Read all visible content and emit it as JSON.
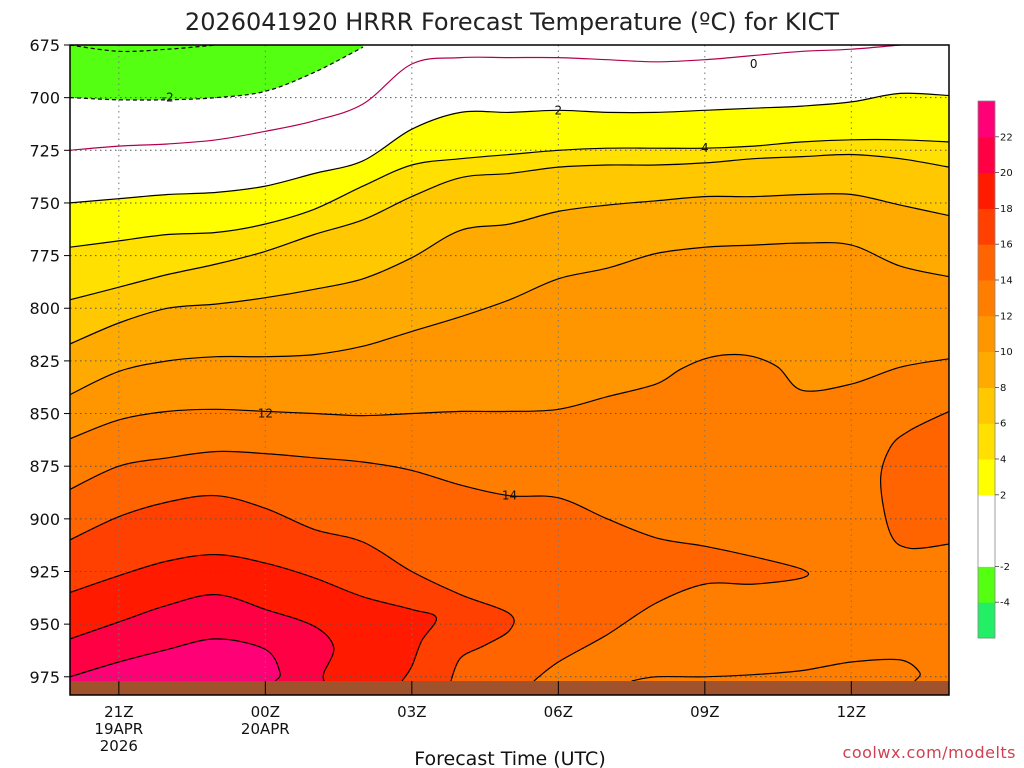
{
  "chart_data": {
    "type": "heatmap",
    "title": "2026041920 HRRR Forecast Temperature (ºC) for KICT",
    "xlabel": "Forecast Time (UTC)",
    "ylabel": "",
    "credit": "coolwx.com/modelts",
    "y_levels": [
      675,
      700,
      725,
      750,
      775,
      800,
      825,
      850,
      875,
      900,
      925,
      950,
      975
    ],
    "y_tick_labels": [
      "675",
      "700",
      "725",
      "750",
      "775",
      "800",
      "825",
      "850",
      "875",
      "900",
      "925",
      "950",
      "975"
    ],
    "ylim": [
      675,
      977
    ],
    "xlim": [
      -1,
      17
    ],
    "x_ticks": [
      {
        "hour": 0,
        "lines": [
          "21Z",
          "19APR",
          "2026"
        ]
      },
      {
        "hour": 3,
        "lines": [
          "00Z",
          "20APR"
        ]
      },
      {
        "hour": 6,
        "lines": [
          "03Z"
        ]
      },
      {
        "hour": 9,
        "lines": [
          "06Z"
        ]
      },
      {
        "hour": 12,
        "lines": [
          "09Z"
        ]
      },
      {
        "hour": 15,
        "lines": [
          "12Z"
        ]
      }
    ],
    "colorbar": {
      "levels": [
        -6,
        -4,
        -2,
        0,
        2,
        4,
        6,
        8,
        10,
        12,
        14,
        16,
        18,
        20,
        22,
        24
      ],
      "tick_labels": [
        "-4",
        "-2",
        "2",
        "4",
        "6",
        "8",
        "10",
        "12",
        "14",
        "16",
        "18",
        "20",
        "22"
      ],
      "colors": [
        "#22ee66",
        "#55ff11",
        "#ffffff",
        "#ffffff",
        "#ffff00",
        "#ffe000",
        "#ffc800",
        "#ffaa00",
        "#ff9600",
        "#ff7e00",
        "#ff6400",
        "#ff4000",
        "#ff1a00",
        "#ff0044",
        "#ff0077"
      ]
    },
    "contours": [
      {
        "value": -2,
        "color": "#000000",
        "dashed": true,
        "label": "-2",
        "label_at": [
          1,
          700
        ],
        "points": [
          [
            -1,
            700
          ],
          [
            0,
            701
          ],
          [
            1,
            701
          ],
          [
            2,
            700
          ],
          [
            3,
            697
          ],
          [
            4,
            688
          ],
          [
            5,
            676
          ]
        ]
      },
      {
        "value": -2,
        "color": "#000000",
        "dashed": true,
        "label": "",
        "points": [
          [
            -1,
            675
          ],
          [
            0,
            678
          ],
          [
            1,
            677
          ],
          [
            2,
            675
          ]
        ]
      },
      {
        "value": 0,
        "color": "#b3004f",
        "dashed": false,
        "label": "0",
        "label_at": [
          13,
          684
        ],
        "points": [
          [
            -1,
            725
          ],
          [
            0,
            723
          ],
          [
            1,
            722
          ],
          [
            2,
            720
          ],
          [
            3,
            716
          ],
          [
            4,
            711
          ],
          [
            5,
            703
          ],
          [
            6,
            684
          ],
          [
            7,
            681
          ],
          [
            8,
            681
          ],
          [
            9,
            681
          ],
          [
            10,
            682
          ],
          [
            11,
            683
          ],
          [
            12,
            682
          ],
          [
            13,
            680
          ],
          [
            14,
            678
          ],
          [
            15,
            677
          ],
          [
            16,
            675
          ],
          [
            17,
            673
          ]
        ]
      },
      {
        "value": 2,
        "color": "#000000",
        "dashed": false,
        "label": "2",
        "label_at": [
          9,
          706
        ],
        "points": [
          [
            -1,
            750
          ],
          [
            0,
            748
          ],
          [
            1,
            746
          ],
          [
            2,
            745
          ],
          [
            3,
            742
          ],
          [
            4,
            736
          ],
          [
            5,
            730
          ],
          [
            6,
            715
          ],
          [
            7,
            707
          ],
          [
            8,
            707
          ],
          [
            9,
            706
          ],
          [
            10,
            707
          ],
          [
            11,
            707
          ],
          [
            12,
            706
          ],
          [
            13,
            705
          ],
          [
            14,
            704
          ],
          [
            15,
            702
          ],
          [
            16,
            698
          ],
          [
            17,
            699
          ]
        ]
      },
      {
        "value": 4,
        "color": "#000000",
        "dashed": false,
        "label": "4",
        "label_at": [
          12,
          724
        ],
        "points": [
          [
            -1,
            771
          ],
          [
            0,
            768
          ],
          [
            1,
            765
          ],
          [
            2,
            764
          ],
          [
            3,
            760
          ],
          [
            4,
            753
          ],
          [
            5,
            742
          ],
          [
            6,
            732
          ],
          [
            7,
            729
          ],
          [
            8,
            727
          ],
          [
            9,
            725
          ],
          [
            10,
            724
          ],
          [
            11,
            724
          ],
          [
            12,
            724
          ],
          [
            13,
            723
          ],
          [
            14,
            721
          ],
          [
            15,
            720
          ],
          [
            16,
            720
          ],
          [
            17,
            721
          ]
        ]
      },
      {
        "value": 6,
        "color": "#000000",
        "dashed": false,
        "label": "",
        "points": [
          [
            -1,
            796
          ],
          [
            0,
            790
          ],
          [
            1,
            784
          ],
          [
            2,
            779
          ],
          [
            3,
            773
          ],
          [
            4,
            765
          ],
          [
            5,
            758
          ],
          [
            6,
            747
          ],
          [
            7,
            738
          ],
          [
            8,
            736
          ],
          [
            9,
            733
          ],
          [
            10,
            732
          ],
          [
            11,
            732
          ],
          [
            12,
            731
          ],
          [
            13,
            729
          ],
          [
            14,
            728
          ],
          [
            15,
            727
          ],
          [
            16,
            729
          ],
          [
            17,
            733
          ]
        ]
      },
      {
        "value": 8,
        "color": "#000000",
        "dashed": false,
        "label": "",
        "points": [
          [
            -1,
            817
          ],
          [
            0,
            807
          ],
          [
            1,
            800
          ],
          [
            2,
            798
          ],
          [
            3,
            795
          ],
          [
            4,
            791
          ],
          [
            5,
            786
          ],
          [
            6,
            776
          ],
          [
            7,
            763
          ],
          [
            8,
            760
          ],
          [
            9,
            754
          ],
          [
            10,
            751
          ],
          [
            11,
            749
          ],
          [
            12,
            747
          ],
          [
            13,
            747
          ],
          [
            14,
            746
          ],
          [
            15,
            746
          ],
          [
            16,
            751
          ],
          [
            17,
            756
          ]
        ]
      },
      {
        "value": 10,
        "color": "#000000",
        "dashed": false,
        "label": "",
        "points": [
          [
            -1,
            841
          ],
          [
            0,
            830
          ],
          [
            1,
            825
          ],
          [
            2,
            823
          ],
          [
            3,
            823
          ],
          [
            4,
            822
          ],
          [
            5,
            818
          ],
          [
            6,
            811
          ],
          [
            7,
            804
          ],
          [
            8,
            796
          ],
          [
            9,
            786
          ],
          [
            10,
            781
          ],
          [
            11,
            774
          ],
          [
            12,
            771
          ],
          [
            13,
            770
          ],
          [
            14,
            769
          ],
          [
            15,
            770
          ],
          [
            16,
            780
          ],
          [
            17,
            785
          ]
        ]
      },
      {
        "value": 12,
        "color": "#000000",
        "dashed": false,
        "label": "12",
        "label_at": [
          3,
          850
        ],
        "points": [
          [
            -1,
            862
          ],
          [
            0,
            853
          ],
          [
            1,
            849
          ],
          [
            2,
            848
          ],
          [
            3,
            849
          ],
          [
            4,
            850
          ],
          [
            5,
            851
          ],
          [
            6,
            850
          ],
          [
            7,
            849
          ],
          [
            8,
            849
          ],
          [
            9,
            848
          ],
          [
            10,
            842
          ],
          [
            11,
            836
          ],
          [
            11.5,
            829
          ],
          [
            12,
            824
          ],
          [
            12.5,
            822
          ],
          [
            13,
            823
          ],
          [
            13.5,
            828
          ],
          [
            14,
            839
          ],
          [
            15,
            836
          ],
          [
            16,
            828
          ],
          [
            17,
            824
          ]
        ]
      },
      {
        "value": 14,
        "color": "#000000",
        "dashed": false,
        "label": "14",
        "label_at": [
          8,
          889
        ],
        "points": [
          [
            -1,
            886
          ],
          [
            0,
            875
          ],
          [
            1,
            871
          ],
          [
            2,
            868
          ],
          [
            3,
            869
          ],
          [
            4,
            871
          ],
          [
            5,
            873
          ],
          [
            6,
            877
          ],
          [
            7,
            884
          ],
          [
            8,
            889
          ],
          [
            9,
            890
          ],
          [
            10,
            900
          ],
          [
            11,
            909
          ],
          [
            12,
            913
          ],
          [
            13,
            918
          ],
          [
            14,
            924
          ],
          [
            14,
            928
          ],
          [
            13,
            931
          ],
          [
            12,
            931
          ],
          [
            11,
            940
          ],
          [
            10,
            955
          ],
          [
            9,
            968
          ],
          [
            8.5,
            977
          ]
        ]
      },
      {
        "value": 14,
        "color": "#000000",
        "dashed": false,
        "label": "",
        "points": [
          [
            17,
            849
          ],
          [
            16.2,
            858
          ],
          [
            15.8,
            866
          ],
          [
            15.6,
            882
          ],
          [
            15.8,
            907
          ],
          [
            16.2,
            914
          ],
          [
            17,
            912
          ]
        ]
      },
      {
        "value": 14,
        "color": "#000000",
        "dashed": false,
        "label": "",
        "points": [
          [
            10.5,
            977
          ],
          [
            11,
            975
          ],
          [
            12,
            975
          ],
          [
            13,
            974
          ],
          [
            14,
            972
          ],
          [
            15,
            968
          ],
          [
            16,
            967
          ],
          [
            16.4,
            973
          ],
          [
            16.3,
            977
          ]
        ]
      },
      {
        "value": 16,
        "color": "#000000",
        "dashed": false,
        "label": "",
        "points": [
          [
            -1,
            910
          ],
          [
            0,
            899
          ],
          [
            1,
            892
          ],
          [
            2,
            889
          ],
          [
            3,
            895
          ],
          [
            4,
            905
          ],
          [
            5,
            911
          ],
          [
            6,
            925
          ],
          [
            7,
            936
          ],
          [
            8,
            945
          ],
          [
            8,
            953
          ],
          [
            7.5,
            960
          ],
          [
            7,
            966
          ],
          [
            6.8,
            977
          ]
        ]
      },
      {
        "value": 18,
        "color": "#000000",
        "dashed": false,
        "label": "",
        "points": [
          [
            -1,
            935
          ],
          [
            0,
            927
          ],
          [
            1,
            920
          ],
          [
            2,
            917
          ],
          [
            3,
            921
          ],
          [
            4,
            928
          ],
          [
            5,
            937
          ],
          [
            6,
            943
          ],
          [
            6.5,
            947
          ],
          [
            6.2,
            958
          ],
          [
            6,
            970
          ],
          [
            5.8,
            977
          ]
        ]
      },
      {
        "value": 20,
        "color": "#000000",
        "dashed": false,
        "label": "",
        "points": [
          [
            -1,
            957
          ],
          [
            0,
            949
          ],
          [
            1,
            941
          ],
          [
            2,
            936
          ],
          [
            3,
            943
          ],
          [
            4,
            951
          ],
          [
            4.4,
            961
          ],
          [
            4.2,
            973
          ],
          [
            4.2,
            977
          ]
        ]
      },
      {
        "value": 22,
        "color": "#000000",
        "dashed": false,
        "label": "",
        "points": [
          [
            -1,
            975
          ],
          [
            0,
            968
          ],
          [
            1,
            962
          ],
          [
            2,
            957
          ],
          [
            3,
            962
          ],
          [
            3.3,
            973
          ],
          [
            3.2,
            977
          ]
        ]
      }
    ]
  }
}
